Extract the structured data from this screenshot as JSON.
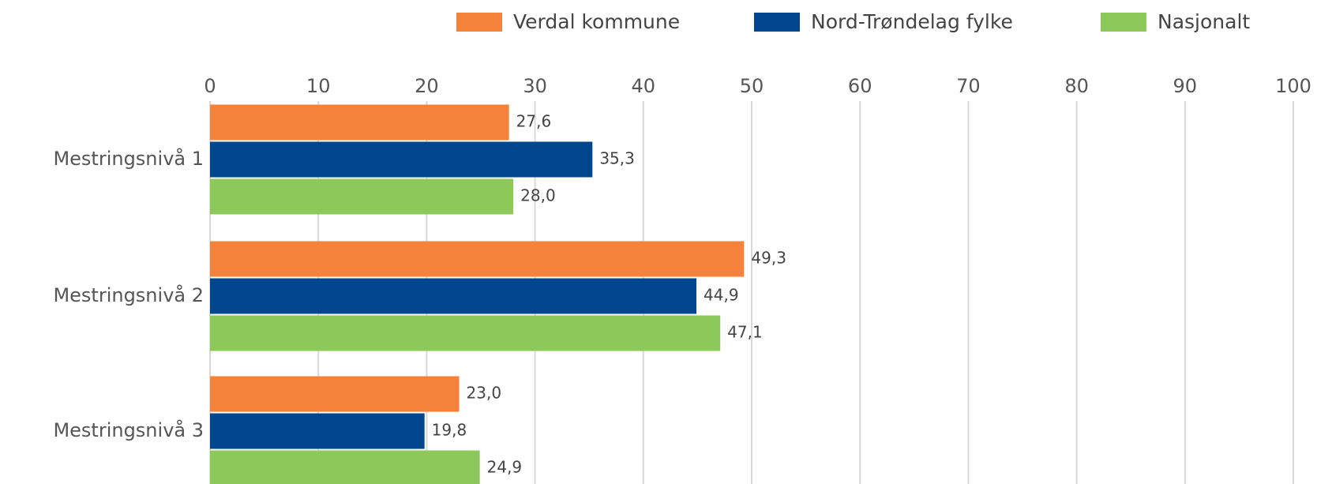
{
  "chart_data": {
    "type": "hbar",
    "categories": [
      "Mestringsnivå 1",
      "Mestringsnivå 2",
      "Mestringsnivå 3"
    ],
    "series": [
      {
        "name": "Verdal kommune",
        "color": "#f5823a",
        "values": [
          27.6,
          49.3,
          23.0
        ],
        "value_labels": [
          "27,6",
          "49,3",
          "23,0"
        ]
      },
      {
        "name": "Nord-Trøndelag fylke",
        "color": "#00468e",
        "values": [
          35.3,
          44.9,
          19.8
        ],
        "value_labels": [
          "35,3",
          "44,9",
          "19,8"
        ]
      },
      {
        "name": "Nasjonalt",
        "color": "#8dc85a",
        "values": [
          28.0,
          47.1,
          24.9
        ],
        "value_labels": [
          "28,0",
          "47,1",
          "24,9"
        ]
      }
    ],
    "xlim": [
      0,
      100
    ],
    "xticks": [
      0,
      10,
      20,
      30,
      40,
      50,
      60,
      70,
      80,
      90,
      100
    ],
    "grid": true,
    "legend": "top-right"
  }
}
